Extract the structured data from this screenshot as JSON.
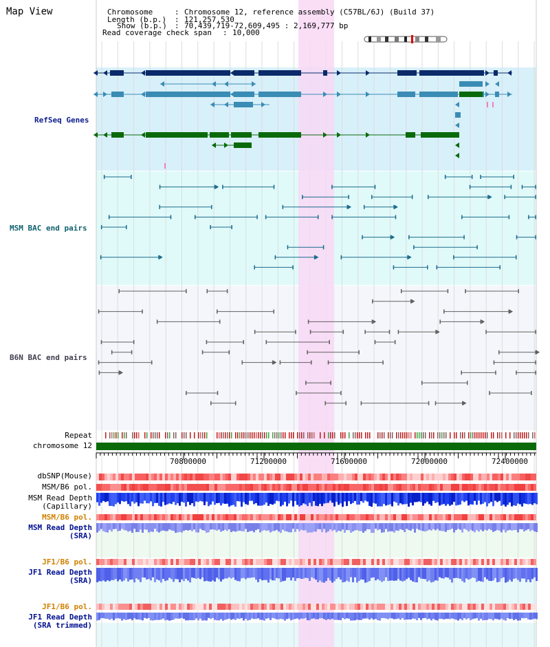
{
  "title": "Map View",
  "info": {
    "chromosome_key": "Chromosome",
    "chromosome_val": "Chromosome 12, reference assembly (C57BL/6J) (Build 37)",
    "length_key": "Length (b.p.)",
    "length_val": "121,257,530",
    "show_key": "Show (b.p.)",
    "show_val": "70,439,719-72,609,495 : 2,169,777 bp",
    "span_key": "Read coverage check span",
    "span_val": "10,000"
  },
  "tracks": {
    "refseq": "RefSeq Genes",
    "msm_bac": "MSM BAC end pairs",
    "b6n_bac": "B6N BAC end pairs",
    "repeat": "Repeat",
    "chromosome": "chromosome 12",
    "dbsnp": "dbSNP(Mouse)",
    "msm_b6_pol_1": "MSM/B6 pol.",
    "msm_depth_cap_1": "MSM Read Depth",
    "msm_depth_cap_2": "(Capillary)",
    "msm_b6_pol_2": "MSM/B6 pol.",
    "msm_depth_sra_1": "MSM Read Depth",
    "msm_depth_sra_2": "(SRA)",
    "jf1_b6_pol_1": "JF1/B6 pol.",
    "jf1_depth_sra_1": "JF1 Read Depth",
    "jf1_depth_sra_2": "(SRA)",
    "jf1_b6_pol_2": "JF1/B6 pol.",
    "jf1_depth_trim_1": "JF1 Read Depth",
    "jf1_depth_trim_2": "(SRA trimmed)"
  },
  "axis": {
    "ticks": [
      "70800000",
      "71200000",
      "71600000",
      "72000000",
      "72400000"
    ]
  },
  "colors": {
    "refseq_bg": "#d8f0fa",
    "msm_bg": "#e0fafa",
    "b6n_bg": "#f4f6fb",
    "highlight": "#f8d8f4",
    "gene_dark": "#0a2a6a",
    "gene_mid": "#3a8cb4",
    "gene_green": "#0a6a0a",
    "msm_line": "#1a6a8a",
    "b6n_line": "#606060",
    "label_refseq": "#102090",
    "label_msm": "#106070",
    "label_b6n": "#404050",
    "label_pol": "#d08000",
    "label_depth": "#001090"
  }
}
